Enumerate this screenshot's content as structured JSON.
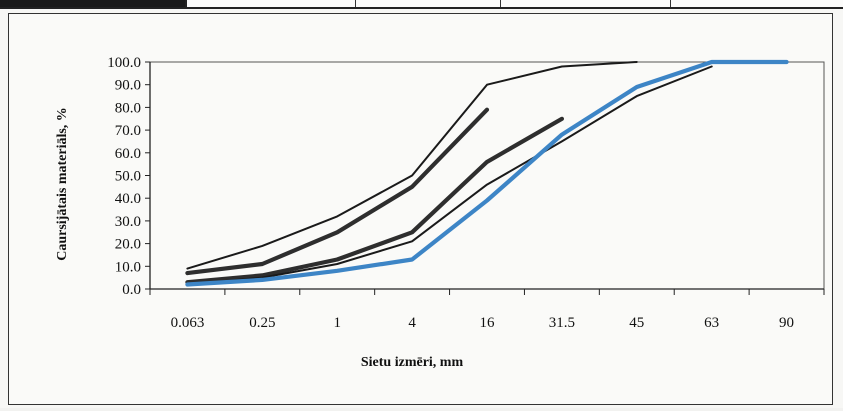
{
  "chart_data": {
    "type": "line",
    "xlabel": "Sietu izmēri, mm",
    "ylabel": "Caursijātais materiāls, %",
    "categories": [
      "0.063",
      "0.25",
      "1",
      "4",
      "16",
      "31.5",
      "45",
      "63",
      "90"
    ],
    "yticks": [
      "0.0",
      "10.0",
      "20.0",
      "30.0",
      "40.0",
      "50.0",
      "60.0",
      "70.0",
      "80.0",
      "90.0",
      "100.0"
    ],
    "ylim": [
      0,
      100
    ],
    "grid": false,
    "series": [
      {
        "color": "#1a1a1a",
        "style": "thin",
        "points": [
          [
            0,
            9
          ],
          [
            1,
            19
          ],
          [
            2,
            32
          ],
          [
            3,
            50
          ],
          [
            4,
            90
          ],
          [
            5,
            98
          ],
          [
            6,
            100
          ]
        ]
      },
      {
        "color": "#2e2e2e",
        "style": "thick",
        "points": [
          [
            0,
            7
          ],
          [
            1,
            11
          ],
          [
            2,
            25
          ],
          [
            3,
            45
          ],
          [
            4,
            79
          ]
        ]
      },
      {
        "color": "#2e2e2e",
        "style": "thick",
        "points": [
          [
            0,
            3
          ],
          [
            1,
            6
          ],
          [
            2,
            13
          ],
          [
            3,
            25
          ],
          [
            4,
            56
          ],
          [
            5,
            75
          ]
        ]
      },
      {
        "color": "#1a1a1a",
        "style": "thin",
        "points": [
          [
            0,
            2
          ],
          [
            1,
            5
          ],
          [
            2,
            11
          ],
          [
            3,
            21
          ],
          [
            4,
            46
          ],
          [
            5,
            65
          ],
          [
            6,
            85
          ],
          [
            7,
            98
          ]
        ]
      },
      {
        "color": "#3d85c6",
        "style": "thick",
        "points": [
          [
            0,
            2
          ],
          [
            1,
            4
          ],
          [
            2,
            8
          ],
          [
            3,
            13
          ],
          [
            4,
            39
          ],
          [
            5,
            68
          ],
          [
            6,
            89
          ],
          [
            7,
            100
          ],
          [
            8,
            100
          ]
        ]
      }
    ]
  }
}
